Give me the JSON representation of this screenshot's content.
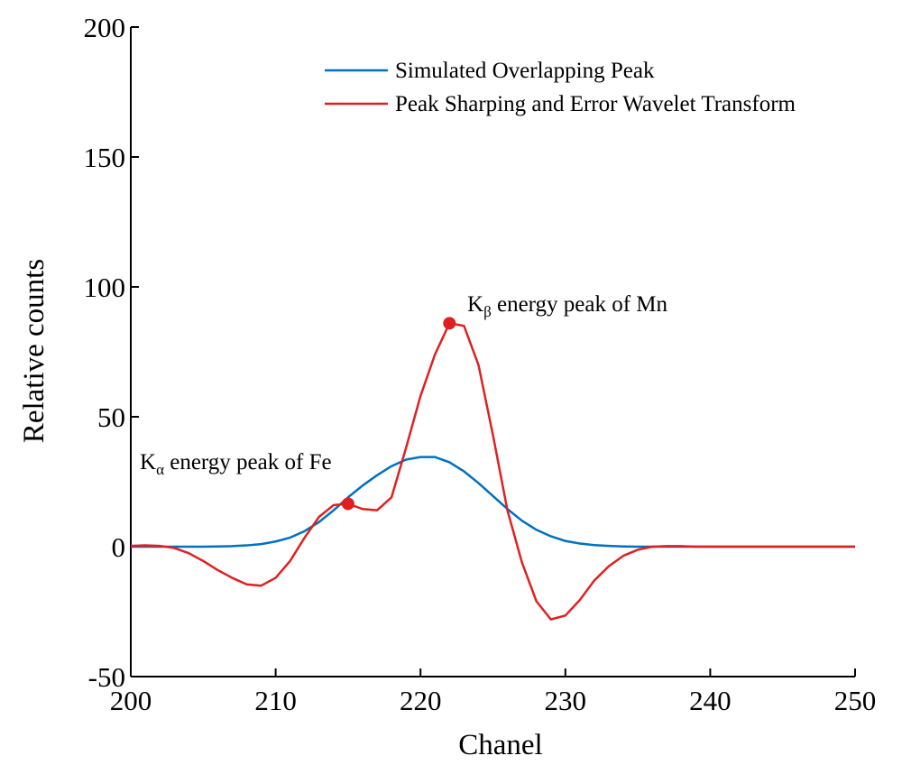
{
  "chart_data": {
    "type": "line",
    "title": "",
    "xlabel": "Chanel",
    "ylabel": "Relative counts",
    "xlim": [
      200,
      250
    ],
    "ylim": [
      -50,
      200
    ],
    "xticks": [
      200,
      210,
      220,
      230,
      240,
      250
    ],
    "yticks": [
      -50,
      0,
      50,
      100,
      150,
      200
    ],
    "grid": false,
    "legend_position": "top-right",
    "series": [
      {
        "name": "Simulated Overlapping Peak",
        "color": "#0070c0",
        "x": [
          200,
          201,
          202,
          203,
          204,
          205,
          206,
          207,
          208,
          209,
          210,
          211,
          212,
          213,
          214,
          215,
          216,
          217,
          218,
          219,
          220,
          221,
          222,
          223,
          224,
          225,
          226,
          227,
          228,
          229,
          230,
          231,
          232,
          233,
          234,
          235,
          236,
          237,
          238,
          239,
          240,
          241,
          242,
          243,
          244,
          245,
          246,
          247,
          248,
          249,
          250
        ],
        "y": [
          0,
          0,
          0,
          0,
          0,
          0,
          0.1,
          0.2,
          0.5,
          1,
          2,
          3.5,
          6,
          9.5,
          14,
          19,
          23.5,
          27.5,
          31,
          33.5,
          34.5,
          34.5,
          32.5,
          29,
          24.5,
          19.5,
          14.5,
          10,
          6.5,
          4,
          2.2,
          1.2,
          0.6,
          0.3,
          0.1,
          0,
          0,
          0,
          0,
          0,
          0,
          0,
          0,
          0,
          0,
          0,
          0,
          0,
          0,
          0,
          0
        ]
      },
      {
        "name": "Peak Sharping and Error Wavelet Transform",
        "color": "#e02020",
        "x": [
          200,
          201,
          202,
          203,
          204,
          205,
          206,
          207,
          208,
          209,
          210,
          211,
          212,
          213,
          214,
          215,
          216,
          217,
          218,
          219,
          220,
          221,
          222,
          223,
          224,
          225,
          226,
          227,
          228,
          229,
          230,
          231,
          232,
          233,
          234,
          235,
          236,
          237,
          238,
          239,
          240,
          241,
          242,
          243,
          244,
          245,
          246,
          247,
          248,
          249,
          250
        ],
        "y": [
          0.3,
          0.5,
          0.3,
          -0.5,
          -2.5,
          -5.5,
          -9,
          -12,
          -14.5,
          -15,
          -12,
          -5.5,
          3.5,
          11.5,
          16,
          16.5,
          14.5,
          14,
          19,
          38,
          58,
          74,
          86,
          85,
          70,
          43,
          14,
          -6,
          -21,
          -28,
          -26.5,
          -20.5,
          -13,
          -7.5,
          -3.5,
          -1.2,
          0,
          0.2,
          0.2,
          0,
          0,
          0,
          0,
          0,
          0,
          0,
          0,
          0,
          0,
          0,
          0
        ]
      }
    ],
    "annotations": [
      {
        "label": "K",
        "sub": "α",
        "text": " energy peak of Fe",
        "x": 215,
        "y": 16.5,
        "color": "#e02020"
      },
      {
        "label": "K",
        "sub": "β",
        "text": " energy peak of Mn",
        "x": 222,
        "y": 86,
        "color": "#e02020"
      }
    ]
  }
}
